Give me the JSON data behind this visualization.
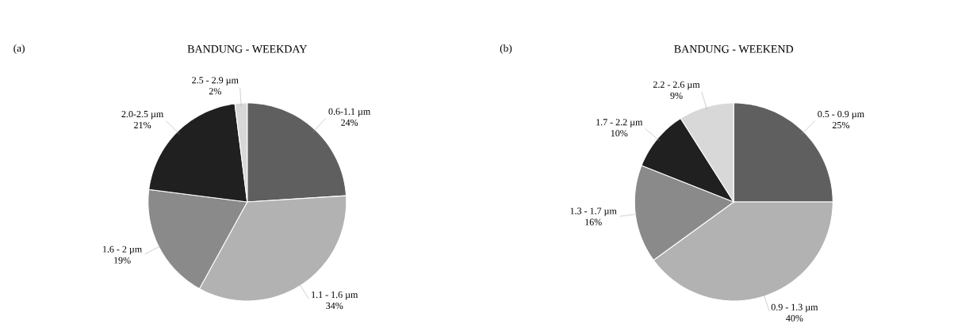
{
  "chart_data": [
    {
      "type": "pie",
      "title": "BANDUNG - WEEKDAY",
      "annotations": [
        "(a)"
      ],
      "categories": [
        "0.6-1.1 µm",
        "1.1 - 1.6 µm",
        "1.6 - 2 µm",
        "2.0-2.5 µm",
        "2.5 - 2.9 µm"
      ],
      "values": [
        24,
        34,
        19,
        21,
        2
      ],
      "value_labels": [
        "24%",
        "34%",
        "19%",
        "21%",
        "2%"
      ],
      "colors": [
        "#5f5f5f",
        "#b2b2b2",
        "#8a8a8a",
        "#202020",
        "#d8d8d8"
      ]
    },
    {
      "type": "pie",
      "title": "BANDUNG - WEEKEND",
      "annotations": [
        "(b)"
      ],
      "categories": [
        "0.5 - 0.9 µm",
        "0.9 - 1.3 µm",
        "1.3 - 1.7 µm",
        "1.7 - 2.2 µm",
        "2.2 - 2.6 µm"
      ],
      "values": [
        25,
        40,
        16,
        10,
        9
      ],
      "value_labels": [
        "25%",
        "40%",
        "16%",
        "10%",
        "9%"
      ],
      "colors": [
        "#5f5f5f",
        "#b2b2b2",
        "#8a8a8a",
        "#202020",
        "#d8d8d8"
      ]
    }
  ]
}
